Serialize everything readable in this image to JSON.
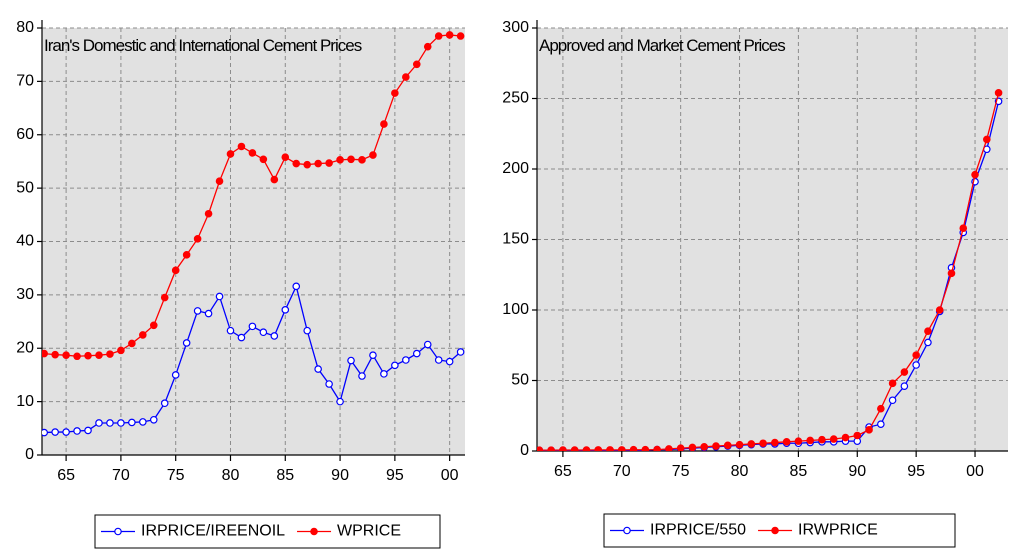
{
  "chart_data": [
    {
      "type": "line",
      "title": "Iran's Domestic and International Cement Prices",
      "x": [
        1963,
        1964,
        1965,
        1966,
        1967,
        1968,
        1969,
        1970,
        1971,
        1972,
        1973,
        1974,
        1975,
        1976,
        1977,
        1978,
        1979,
        1980,
        1981,
        1982,
        1983,
        1984,
        1985,
        1986,
        1987,
        1988,
        1989,
        1990,
        1991,
        1992,
        1993,
        1994,
        1995,
        1996,
        1997,
        1998,
        1999,
        2000,
        2001
      ],
      "series": [
        {
          "name": "IRPRICE/IREENOIL",
          "color": "#0000ff",
          "marker": "open-circle",
          "values": [
            4.2,
            4.3,
            4.3,
            4.5,
            4.6,
            6.0,
            6.0,
            6.0,
            6.1,
            6.2,
            6.6,
            9.7,
            15.0,
            21.0,
            27.0,
            26.5,
            29.7,
            23.3,
            22.0,
            24.1,
            23.0,
            22.3,
            27.2,
            31.6,
            23.3,
            16.1,
            13.3,
            10.0,
            17.7,
            14.8,
            18.7,
            15.2,
            16.8,
            17.8,
            19.0,
            20.7,
            17.8,
            17.5,
            19.3
          ]
        },
        {
          "name": "WPRICE",
          "color": "#ff0000",
          "marker": "filled-circle",
          "values": [
            19.0,
            18.8,
            18.7,
            18.5,
            18.6,
            18.7,
            18.9,
            19.6,
            20.9,
            22.5,
            24.3,
            29.5,
            34.6,
            37.5,
            40.5,
            45.2,
            51.3,
            56.4,
            57.8,
            56.6,
            55.4,
            51.6,
            55.8,
            54.6,
            54.4,
            54.6,
            54.7,
            55.3,
            55.4,
            55.3,
            56.2,
            62.0,
            67.8,
            70.8,
            73.2,
            76.5,
            78.5,
            78.7,
            78.5
          ]
        }
      ],
      "xlim": [
        1962.8,
        2001.4
      ],
      "xticks": [
        {
          "value": 1965,
          "label": "65"
        },
        {
          "value": 1970,
          "label": "70"
        },
        {
          "value": 1975,
          "label": "75"
        },
        {
          "value": 1980,
          "label": "80"
        },
        {
          "value": 1985,
          "label": "85"
        },
        {
          "value": 1990,
          "label": "90"
        },
        {
          "value": 1995,
          "label": "95"
        },
        {
          "value": 2000,
          "label": "00"
        }
      ],
      "ylim": [
        0,
        80
      ],
      "yticks": [
        0,
        10,
        20,
        30,
        40,
        50,
        60,
        70,
        80
      ],
      "grid": true,
      "legend": "bottom"
    },
    {
      "type": "line",
      "title": "Approved and Market Cement Prices",
      "x": [
        1963,
        1964,
        1965,
        1966,
        1967,
        1968,
        1969,
        1970,
        1971,
        1972,
        1973,
        1974,
        1975,
        1976,
        1977,
        1978,
        1979,
        1980,
        1981,
        1982,
        1983,
        1984,
        1985,
        1986,
        1987,
        1988,
        1989,
        1990,
        1991,
        1992,
        1993,
        1994,
        1995,
        1996,
        1997,
        1998,
        1999,
        2000,
        2001,
        2002
      ],
      "series": [
        {
          "name": "IRPRICE/550",
          "color": "#0000ff",
          "marker": "open-circle",
          "values": [
            0.5,
            0.5,
            0.5,
            0.5,
            0.5,
            0.5,
            0.5,
            0.5,
            0.5,
            0.5,
            1,
            1,
            1.5,
            2,
            2.5,
            3,
            3.5,
            4,
            4.5,
            5,
            5,
            5.5,
            5.5,
            6,
            6.5,
            6.5,
            7,
            7,
            17,
            19,
            36,
            46,
            61,
            77,
            99,
            130,
            155,
            191,
            214,
            248
          ]
        },
        {
          "name": "IRWPRICE",
          "color": "#ff0000",
          "marker": "filled-circle",
          "values": [
            0.6,
            0.6,
            0.7,
            0.7,
            0.7,
            0.8,
            0.8,
            0.8,
            0.9,
            0.9,
            1,
            1.5,
            2,
            2.5,
            3,
            3.5,
            4,
            4.5,
            5,
            5.5,
            6,
            6.5,
            7,
            7.5,
            8,
            8.5,
            9.5,
            11,
            15,
            30,
            48,
            56,
            68,
            85,
            100,
            126,
            158,
            196,
            221,
            254
          ]
        }
      ],
      "xlim": [
        1962.8,
        2002.8
      ],
      "xticks": [
        {
          "value": 1965,
          "label": "65"
        },
        {
          "value": 1970,
          "label": "70"
        },
        {
          "value": 1975,
          "label": "75"
        },
        {
          "value": 1980,
          "label": "80"
        },
        {
          "value": 1985,
          "label": "85"
        },
        {
          "value": 1990,
          "label": "90"
        },
        {
          "value": 1995,
          "label": "95"
        },
        {
          "value": 2000,
          "label": "00"
        }
      ],
      "ylim": [
        0,
        300
      ],
      "yticks": [
        0,
        50,
        100,
        150,
        200,
        250,
        300
      ],
      "grid": true,
      "legend": "bottom"
    }
  ]
}
